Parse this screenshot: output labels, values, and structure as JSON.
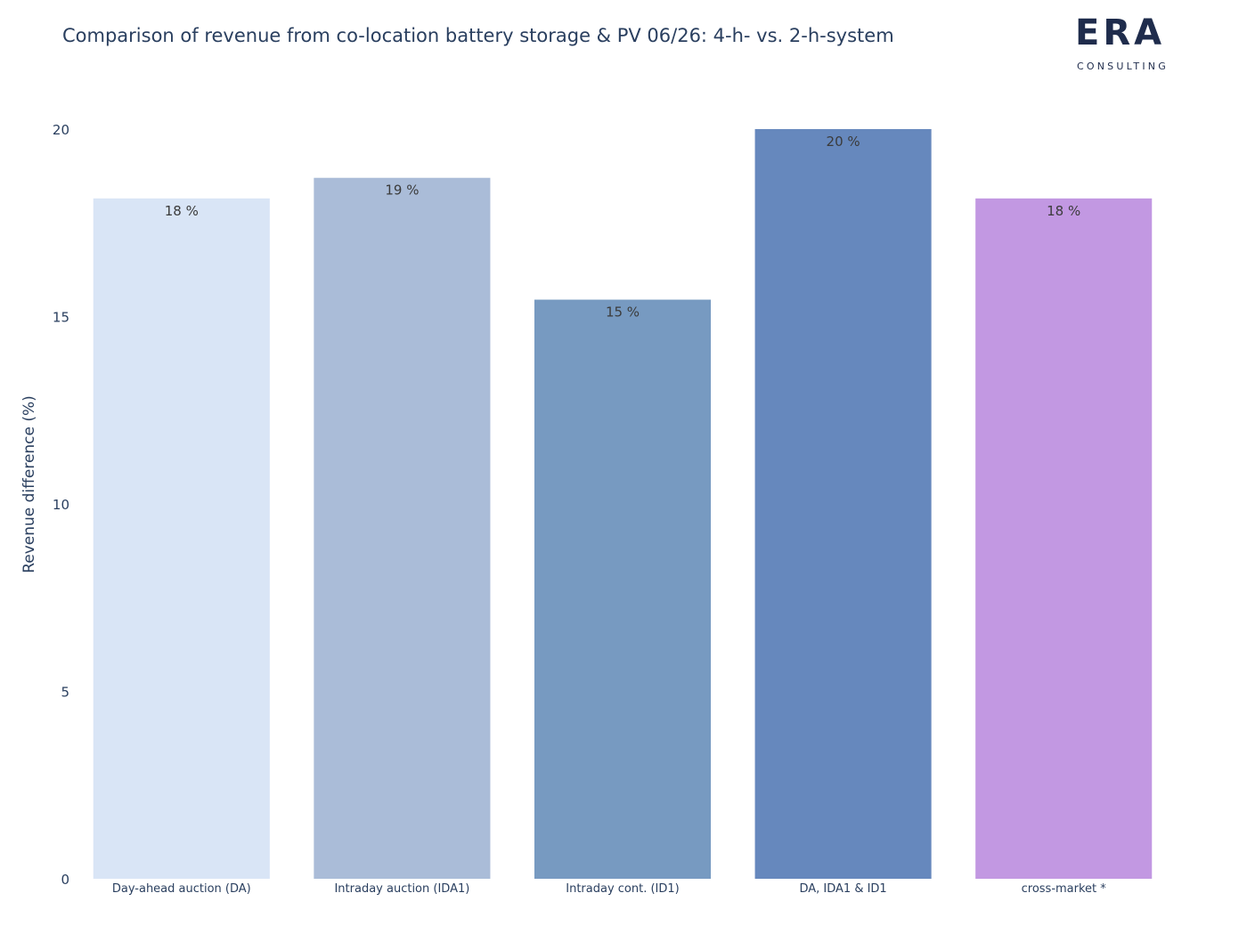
{
  "brand": {
    "logo_text": "ERA",
    "logo_subtext": "CONSULTING",
    "color": "#1f2c4c"
  },
  "chart_data": {
    "type": "bar",
    "title": "Comparison of revenue from co-location battery storage & PV 06/26: 4-h- vs. 2-h-system",
    "xlabel": "",
    "ylabel": "Revenue difference (%)",
    "ylim": [
      0,
      20
    ],
    "yticks": [
      0,
      5,
      10,
      15,
      20
    ],
    "grid": false,
    "categories": [
      "Day-ahead auction (DA)",
      "Intraday auction (IDA1)",
      "Intraday cont. (ID1)",
      "DA, IDA1 & ID1",
      "cross-market *"
    ],
    "values": [
      18.15,
      18.7,
      15.45,
      20.0,
      18.15
    ],
    "data_labels": [
      "18 %",
      "19 %",
      "15 %",
      "20 %",
      "18 %"
    ],
    "colors": [
      "#d9e5f6",
      "#aabcd8",
      "#779ac1",
      "#6688bd",
      "#c298e2"
    ]
  }
}
